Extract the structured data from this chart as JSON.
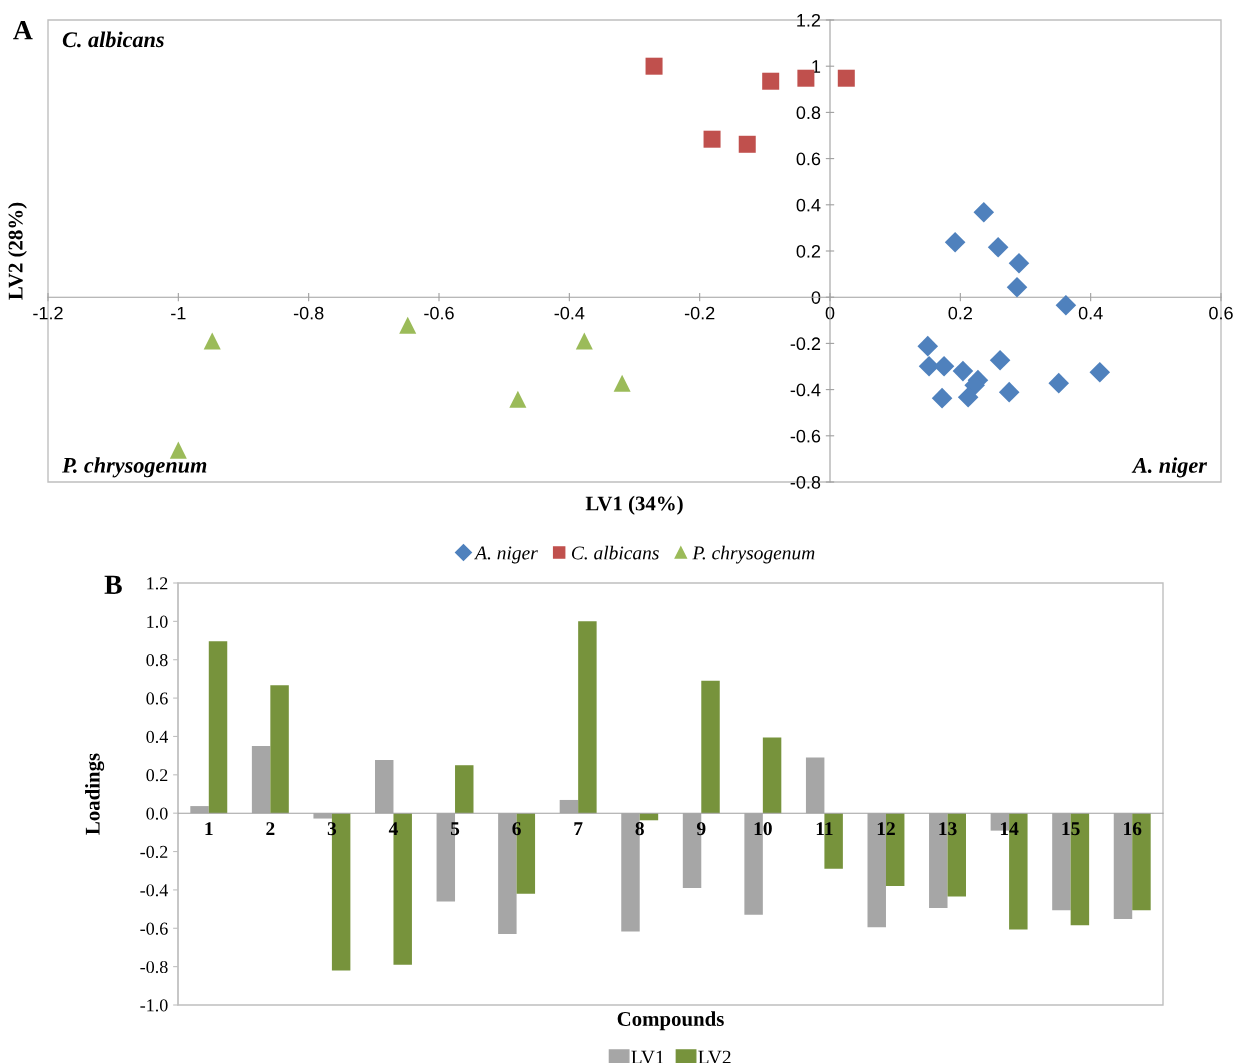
{
  "chart_data": [
    {
      "type": "scatter",
      "xlabel": "LV1 (34%)",
      "ylabel": "LV2 (28%)",
      "annotations": [
        "A",
        "C. albicans",
        "P. chrysogenum",
        "A. niger"
      ],
      "xlim": [
        -1.2,
        0.6
      ],
      "xticks": [
        -1.2,
        -1,
        -0.8,
        -0.6,
        -0.4,
        -0.2,
        0,
        0.2,
        0.4,
        0.6
      ],
      "ylim": [
        -0.8,
        1.2
      ],
      "yticks": [
        -0.8,
        -0.6,
        -0.4,
        -0.2,
        0,
        0.2,
        0.4,
        0.6,
        0.8,
        1,
        1.2
      ],
      "grid": false,
      "legend": "bottom",
      "series": [
        {
          "name": "A. niger",
          "color": "#4f81bd",
          "marker": "diamond",
          "x": [
            0.236,
            0.192,
            0.258,
            0.29,
            0.287,
            0.362,
            0.15,
            0.152,
            0.175,
            0.204,
            0.227,
            0.222,
            0.261,
            0.172,
            0.212,
            0.275,
            0.351,
            0.414
          ],
          "values": [
            0.368,
            0.238,
            0.216,
            0.147,
            0.043,
            -0.035,
            -0.212,
            -0.299,
            -0.299,
            -0.32,
            -0.359,
            -0.381,
            -0.273,
            -0.437,
            -0.433,
            -0.411,
            -0.372,
            -0.325
          ]
        },
        {
          "name": "C. albicans",
          "color": "#c0504d",
          "marker": "square",
          "x": [
            -0.27,
            -0.181,
            -0.127,
            -0.091,
            -0.037,
            0.025
          ],
          "values": [
            1.0,
            0.684,
            0.662,
            0.935,
            0.948,
            0.948
          ]
        },
        {
          "name": "P. chrysogenum",
          "color": "#9bbb59",
          "marker": "triangle",
          "x": [
            -1.0,
            -0.948,
            -0.648,
            -0.479,
            -0.377,
            -0.319
          ],
          "values": [
            -0.662,
            -0.19,
            -0.121,
            -0.442,
            -0.19,
            -0.372
          ]
        }
      ]
    },
    {
      "type": "bar",
      "xlabel": "Compounds",
      "ylabel": "Loadings",
      "annotations": [
        "B"
      ],
      "categories": [
        "1",
        "2",
        "3",
        "4",
        "5",
        "6",
        "7",
        "8",
        "9",
        "10",
        "11",
        "12",
        "13",
        "14",
        "15",
        "16"
      ],
      "ylim": [
        -1.0,
        1.2
      ],
      "yticks": [
        {
          "value": -1.0,
          "label": "-1.0"
        },
        -0.8,
        -0.6,
        -0.4,
        -0.2,
        {
          "value": 0.0,
          "label": "0.0"
        },
        0.2,
        0.4,
        0.6,
        0.8,
        {
          "value": 1.0,
          "label": "1.0"
        },
        1.2
      ],
      "grid": false,
      "legend": "bottom",
      "series": [
        {
          "name": "LV1",
          "color": "#a6a6a6",
          "values": [
            0.037,
            0.35,
            -0.028,
            0.277,
            -0.46,
            -0.63,
            0.069,
            -0.617,
            -0.39,
            -0.53,
            0.29,
            -0.595,
            -0.494,
            -0.091,
            -0.506,
            -0.552
          ]
        },
        {
          "name": "LV2",
          "color": "#77933c",
          "values": [
            0.896,
            0.667,
            -0.82,
            -0.79,
            0.25,
            -0.42,
            1.0,
            -0.037,
            0.69,
            0.394,
            -0.29,
            -0.38,
            -0.435,
            -0.606,
            -0.584,
            -0.506
          ]
        }
      ]
    }
  ]
}
